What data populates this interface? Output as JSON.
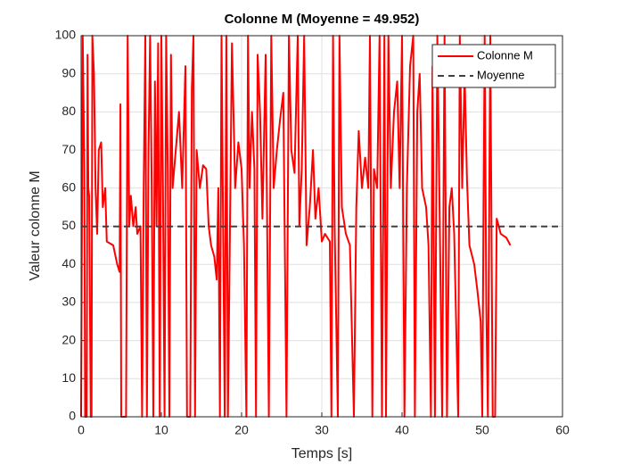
{
  "chart_data": {
    "type": "line",
    "title": "Colonne M (Moyenne = 49.952)",
    "xlabel": "Temps [s]",
    "ylabel": "Valeur colonne M",
    "xlim": [
      0,
      60
    ],
    "ylim": [
      0,
      100
    ],
    "xticks": [
      0,
      10,
      20,
      30,
      40,
      50,
      60
    ],
    "yticks": [
      0,
      10,
      20,
      30,
      40,
      50,
      60,
      70,
      80,
      90,
      100
    ],
    "grid": true,
    "legend": "northeast",
    "series": [
      {
        "name": "Colonne M",
        "color": "#ff0000",
        "dash": "solid",
        "x": [
          0,
          0.2,
          0.4,
          0.5,
          0.7,
          0.8,
          0.9,
          1.0,
          1.2,
          1.3,
          1.4,
          1.6,
          1.8,
          2.0,
          2.2,
          2.5,
          2.7,
          3.0,
          3.2,
          4.0,
          4.5,
          4.8,
          4.9,
          5.0,
          5.6,
          5.8,
          6.0,
          6.2,
          6.5,
          6.8,
          7.0,
          7.4,
          7.6,
          7.8,
          8.0,
          8.2,
          8.4,
          8.6,
          8.8,
          9.0,
          9.2,
          9.4,
          9.6,
          9.8,
          10.0,
          10.2,
          10.4,
          10.6,
          10.8,
          11.0,
          11.2,
          11.4,
          11.8,
          12.2,
          12.6,
          13.0,
          13.2,
          13.6,
          13.8,
          14.0,
          14.2,
          14.4,
          14.8,
          15.2,
          15.6,
          15.9,
          16.2,
          16.6,
          16.9,
          17.1,
          17.3,
          17.5,
          17.7,
          17.9,
          18.1,
          18.3,
          18.8,
          19.2,
          19.6,
          20.0,
          20.3,
          20.6,
          20.8,
          21.0,
          21.3,
          21.6,
          21.8,
          22.0,
          22.3,
          22.6,
          23.0,
          23.4,
          23.7,
          24.0,
          24.4,
          24.8,
          25.2,
          25.6,
          25.9,
          26.2,
          26.6,
          27.0,
          27.2,
          27.5,
          27.8,
          28.1,
          28.5,
          28.9,
          29.2,
          29.6,
          30.0,
          30.4,
          31.0,
          31.2,
          31.4,
          31.6,
          32.0,
          32.2,
          32.5,
          33.0,
          33.5,
          34.0,
          34.3,
          34.6,
          35.0,
          35.4,
          35.8,
          36.0,
          36.3,
          36.5,
          36.9,
          37.2,
          37.5,
          37.8,
          38.0,
          38.3,
          38.6,
          39.0,
          39.4,
          39.7,
          40.0,
          40.3,
          40.6,
          41.0,
          41.4,
          41.6,
          41.9,
          42.2,
          42.5,
          43.0,
          43.3,
          43.6,
          43.8,
          44.1,
          44.4,
          44.7,
          45.0,
          45.3,
          45.6,
          45.9,
          46.2,
          46.5,
          47.0,
          47.2,
          47.5,
          47.8,
          48.1,
          48.4,
          49.0,
          49.4,
          49.8,
          50.0,
          50.3,
          50.5,
          50.7,
          51.0,
          51.3,
          51.6,
          51.8,
          52.3,
          53.0,
          53.5
        ],
        "values": [
          0,
          100,
          65,
          0,
          0,
          95,
          60,
          58,
          0,
          0,
          100,
          90,
          60,
          48,
          70,
          72,
          55,
          60,
          46,
          45,
          40,
          38,
          82,
          0,
          0,
          100,
          50,
          58,
          50,
          55,
          48,
          50,
          0,
          60,
          100,
          0,
          70,
          100,
          60,
          0,
          88,
          50,
          98,
          0,
          100,
          60,
          0,
          100,
          65,
          0,
          95,
          60,
          70,
          80,
          60,
          92,
          0,
          0,
          86,
          100,
          0,
          70,
          60,
          66,
          65,
          50,
          45,
          42,
          36,
          60,
          0,
          100,
          50,
          0,
          100,
          0,
          98,
          60,
          72,
          65,
          45,
          0,
          100,
          60,
          80,
          65,
          0,
          95,
          80,
          52,
          95,
          0,
          100,
          60,
          70,
          78,
          85,
          0,
          100,
          70,
          64,
          100,
          50,
          65,
          100,
          45,
          55,
          70,
          52,
          60,
          46,
          48,
          46,
          0,
          100,
          50,
          0,
          100,
          55,
          48,
          45,
          0,
          55,
          75,
          60,
          68,
          60,
          100,
          0,
          65,
          60,
          100,
          0,
          100,
          0,
          100,
          60,
          80,
          88,
          60,
          100,
          0,
          60,
          92,
          100,
          0,
          80,
          90,
          60,
          55,
          45,
          0,
          92,
          0,
          100,
          52,
          0,
          100,
          0,
          55,
          60,
          48,
          0,
          100,
          60,
          90,
          62,
          45,
          40,
          33,
          25,
          0,
          100,
          30,
          0,
          100,
          0,
          0,
          52,
          48,
          47,
          45
        ]
      },
      {
        "name": "Moyenne",
        "color": "#404040",
        "dash": "dashed",
        "x": [
          0,
          60
        ],
        "values": [
          49.952,
          49.952
        ]
      }
    ]
  }
}
